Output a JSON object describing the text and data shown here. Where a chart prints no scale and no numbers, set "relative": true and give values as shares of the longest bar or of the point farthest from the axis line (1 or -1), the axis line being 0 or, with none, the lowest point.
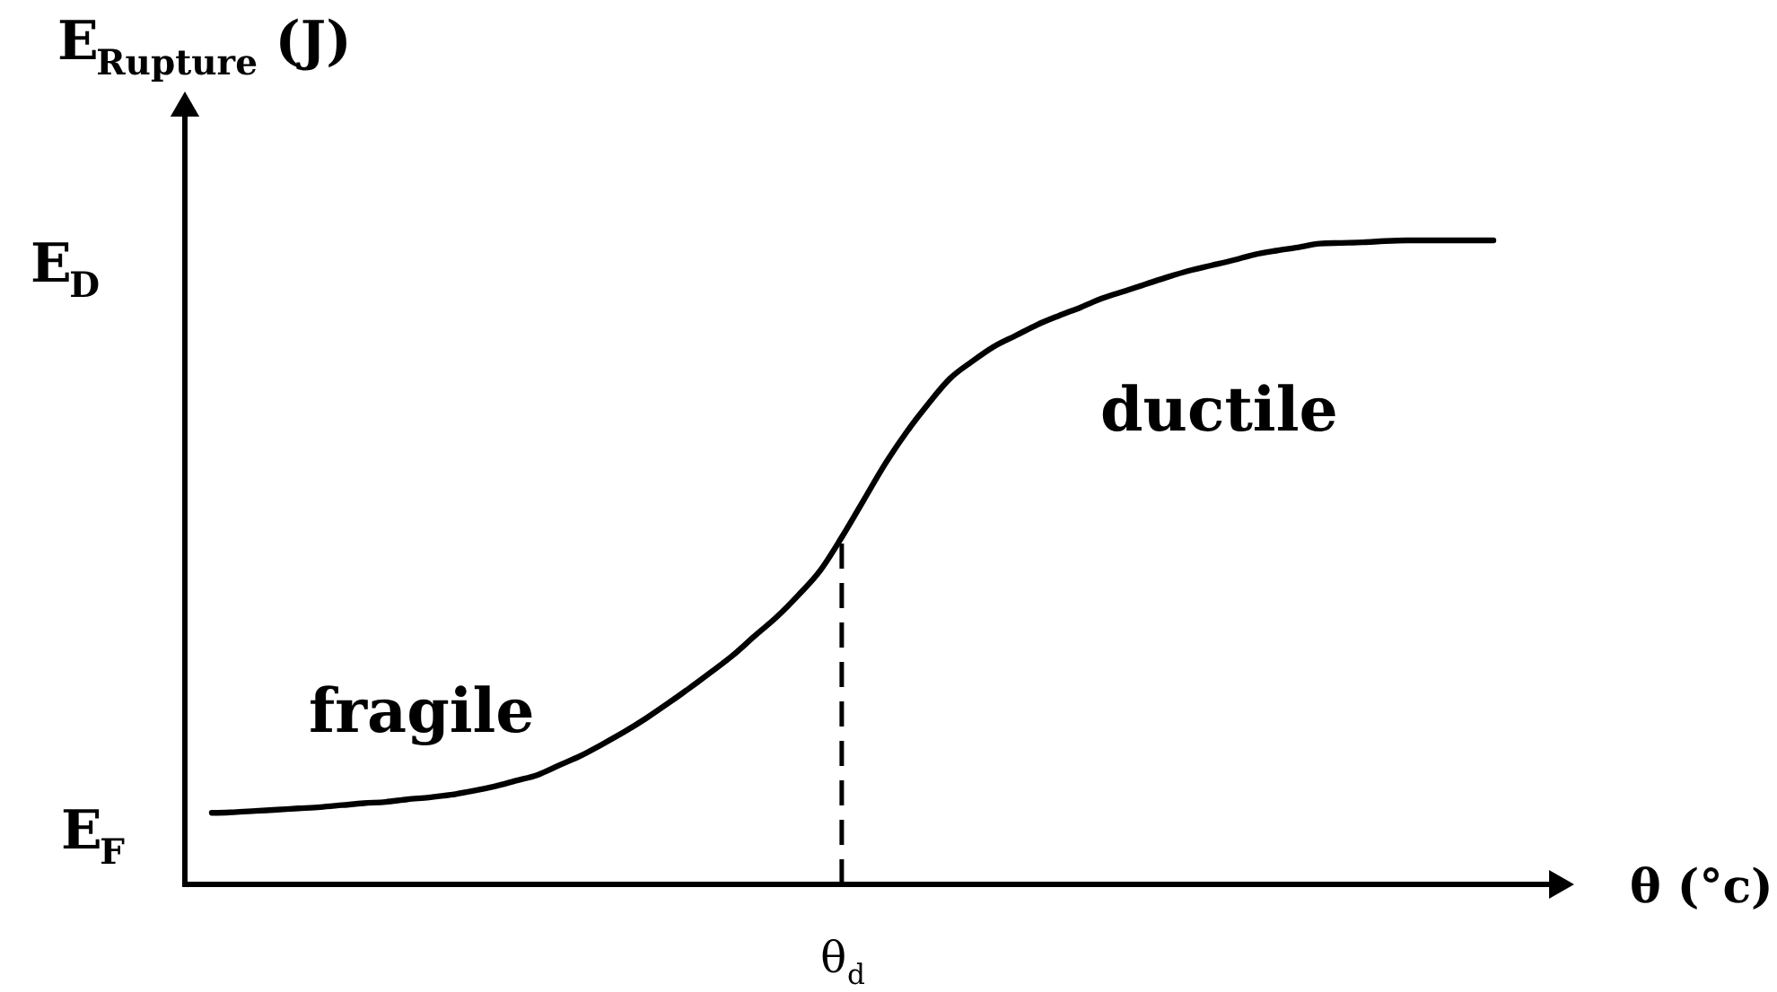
{
  "chart_data": {
    "type": "line",
    "relative": true,
    "xlabel": "θ (°c)",
    "ylabel": "E$_{Rupture}$ (J)",
    "categories": [
      null,
      null,
      null,
      null,
      null,
      null,
      null,
      null,
      null,
      null,
      null,
      null,
      null,
      null,
      null,
      null,
      null,
      null,
      null,
      null,
      null,
      null,
      null,
      null,
      null,
      null,
      null,
      null,
      null,
      null,
      null,
      null,
      null,
      null,
      null,
      null,
      null,
      null,
      null,
      null,
      null,
      null,
      null,
      null,
      null,
      null,
      null,
      null,
      null,
      null,
      null,
      null,
      null,
      null,
      null,
      null,
      null,
      null,
      null,
      null
    ],
    "series": [
      {
        "color": "#000000",
        "values": [
          0.111,
          0.112,
          0.114,
          0.116,
          0.118,
          0.12,
          0.123,
          0.126,
          0.128,
          0.132,
          0.135,
          0.139,
          0.145,
          0.152,
          0.161,
          0.17,
          0.185,
          0.2,
          0.218,
          0.237,
          0.258,
          0.281,
          0.305,
          0.33,
          0.356,
          0.386,
          0.415,
          0.449,
          0.487,
          0.539,
          0.596,
          0.653,
          0.703,
          0.747,
          0.786,
          0.812,
          0.835,
          0.852,
          0.869,
          0.883,
          0.896,
          0.91,
          0.921,
          0.932,
          0.943,
          0.953,
          0.961,
          0.969,
          0.978,
          0.984,
          0.989,
          0.995,
          0.996,
          0.997,
          0.999,
          1,
          1,
          1,
          1,
          1
        ]
      }
    ],
    "annotations": [
      "E$_{D}$",
      "E$_{F}$",
      "fragile",
      "ductile",
      "θ$_{d}$"
    ]
  }
}
